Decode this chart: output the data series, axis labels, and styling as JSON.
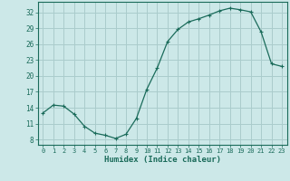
{
  "x": [
    0,
    1,
    2,
    3,
    4,
    5,
    6,
    7,
    8,
    9,
    10,
    11,
    12,
    13,
    14,
    15,
    16,
    17,
    18,
    19,
    20,
    21,
    22,
    23
  ],
  "y": [
    13.0,
    14.5,
    14.3,
    12.8,
    10.5,
    9.2,
    8.8,
    8.2,
    9.0,
    12.0,
    17.5,
    21.5,
    26.5,
    28.8,
    30.2,
    30.8,
    31.5,
    32.3,
    32.8,
    32.5,
    32.1,
    28.3,
    22.3,
    21.8
  ],
  "xlabel": "Humidex (Indice chaleur)",
  "xlim": [
    -0.5,
    23.5
  ],
  "ylim": [
    7,
    34
  ],
  "yticks": [
    8,
    11,
    14,
    17,
    20,
    23,
    26,
    29,
    32
  ],
  "xticks": [
    0,
    1,
    2,
    3,
    4,
    5,
    6,
    7,
    8,
    9,
    10,
    11,
    12,
    13,
    14,
    15,
    16,
    17,
    18,
    19,
    20,
    21,
    22,
    23
  ],
  "line_color": "#1a6b5a",
  "marker": "+",
  "bg_color": "#cce8e8",
  "grid_color": "#aacccc",
  "tick_color": "#1a6b5a",
  "label_color": "#1a6b5a",
  "spine_color": "#1a6b5a"
}
